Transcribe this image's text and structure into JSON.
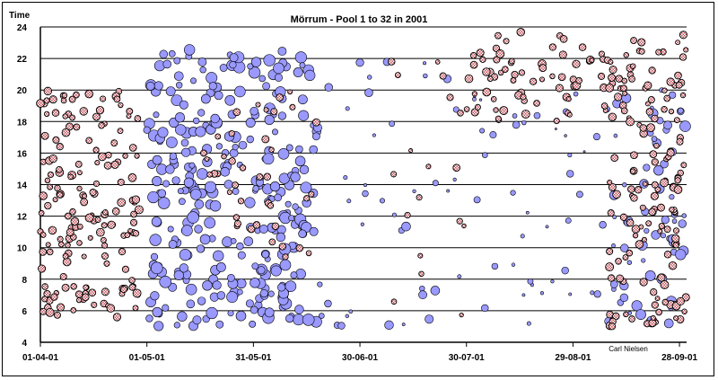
{
  "chart_data": {
    "type": "scatter",
    "title": "Mörrum - Pool 1 to 32 in 2001",
    "ylabel": "Time",
    "xlabel": "",
    "credit": "Carl Nielsen",
    "ylim": [
      4,
      24
    ],
    "yticks": [
      4,
      6,
      8,
      10,
      12,
      14,
      16,
      18,
      20,
      22,
      24
    ],
    "xlim": [
      0,
      182
    ],
    "xticks": [
      {
        "day": 0,
        "label": "01-04-01"
      },
      {
        "day": 30,
        "label": "01-05-01"
      },
      {
        "day": 60,
        "label": "31-05-01"
      },
      {
        "day": 90,
        "label": "30-06-01"
      },
      {
        "day": 120,
        "label": "30-07-01"
      },
      {
        "day": 150,
        "label": "29-08-01"
      },
      {
        "day": 180,
        "label": "28-09-01"
      }
    ],
    "grid": "horizontal",
    "series": [
      {
        "style": "hatched-red",
        "color": "#d9a0a8",
        "points": []
      },
      {
        "style": "blue",
        "color": "#9999ff",
        "points": []
      }
    ]
  }
}
